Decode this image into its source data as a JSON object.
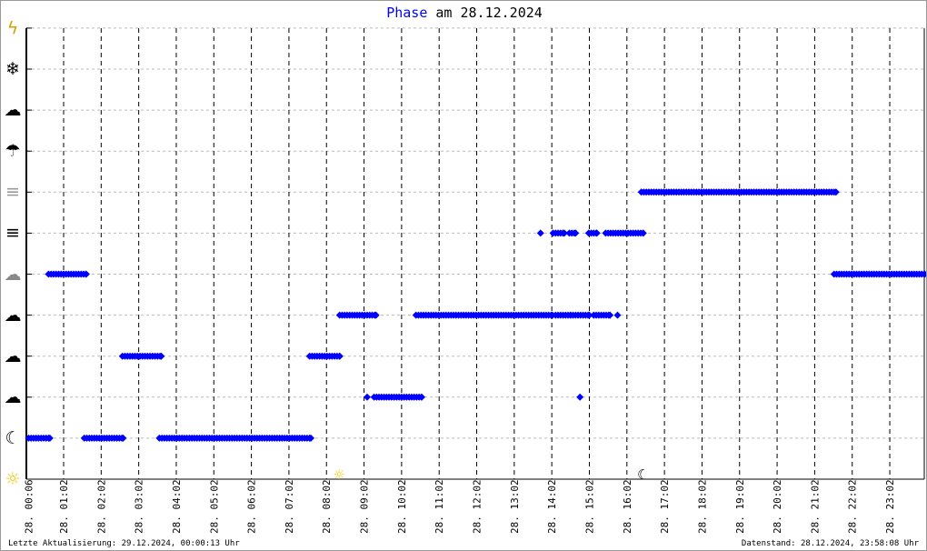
{
  "title": {
    "highlight": "Phase",
    "rest": " am 28.12.2024"
  },
  "footer": {
    "left": "Letzte Aktualisierung: 29.12.2024, 00:00:13 Uhr",
    "right": "Datenstand: 28.12.2024, 23:58:08 Uhr"
  },
  "colors": {
    "series": "#0000ff",
    "axis": "#000000",
    "grid": "#bbbbbb",
    "sun": "#ffcc00"
  },
  "chart_data": {
    "type": "scatter",
    "title": "Phase am 28.12.2024",
    "x_ticks": [
      "28. 00:06",
      "28. 01:02",
      "28. 02:02",
      "28. 03:02",
      "28. 04:02",
      "28. 05:02",
      "28. 06:02",
      "28. 07:02",
      "28. 08:02",
      "28. 09:02",
      "28. 10:02",
      "28. 11:02",
      "28. 12:02",
      "28. 13:02",
      "28. 14:02",
      "28. 15:02",
      "28. 16:02",
      "28. 17:02",
      "28. 18:02",
      "28. 19:02",
      "28. 20:02",
      "28. 21:02",
      "28. 22:02",
      "28. 23:02"
    ],
    "xlim": [
      "00:06",
      "23:58"
    ],
    "y_levels": [
      "sun-icon",
      "moon-icon",
      "cloud-sun-icon",
      "cloud-moon-icon",
      "cloud-icon",
      "overcast-icon",
      "fog-icon",
      "fog-sun-icon",
      "rain-icon",
      "sleet-icon",
      "snow-icon",
      "thunderstorm-icon"
    ],
    "grid": true,
    "segments": [
      {
        "level": 1,
        "from": "00:06",
        "to": "00:40"
      },
      {
        "level": 5,
        "from": "00:38",
        "to": "01:38"
      },
      {
        "level": 1,
        "from": "01:35",
        "to": "02:37"
      },
      {
        "level": 3,
        "from": "02:36",
        "to": "03:38"
      },
      {
        "level": 1,
        "from": "03:35",
        "to": "07:37"
      },
      {
        "level": 3,
        "from": "07:35",
        "to": "08:23"
      },
      {
        "level": 4,
        "from": "08:23",
        "to": "09:21"
      },
      {
        "level": 2,
        "from": "09:07",
        "to": "09:07"
      },
      {
        "level": 2,
        "from": "09:18",
        "to": "10:34"
      },
      {
        "level": 4,
        "from": "10:25",
        "to": "14:03"
      },
      {
        "level": 6,
        "from": "13:44",
        "to": "13:44"
      },
      {
        "level": 6,
        "from": "14:04",
        "to": "14:22"
      },
      {
        "level": 4,
        "from": "14:08",
        "to": "14:32"
      },
      {
        "level": 6,
        "from": "14:30",
        "to": "14:40"
      },
      {
        "level": 4,
        "from": "14:36",
        "to": "15:02"
      },
      {
        "level": 2,
        "from": "14:47",
        "to": "14:47"
      },
      {
        "level": 6,
        "from": "15:01",
        "to": "15:14"
      },
      {
        "level": 4,
        "from": "15:09",
        "to": "15:35"
      },
      {
        "level": 6,
        "from": "15:28",
        "to": "16:28"
      },
      {
        "level": 4,
        "from": "15:47",
        "to": "15:47"
      },
      {
        "level": 7,
        "from": "16:25",
        "to": "21:36"
      },
      {
        "level": 5,
        "from": "21:33",
        "to": "23:58"
      }
    ],
    "markers": [
      {
        "icon": "sunrise-sun-icon",
        "time": "08:22"
      },
      {
        "icon": "sunset-moon-icon",
        "time": "16:28"
      }
    ]
  }
}
